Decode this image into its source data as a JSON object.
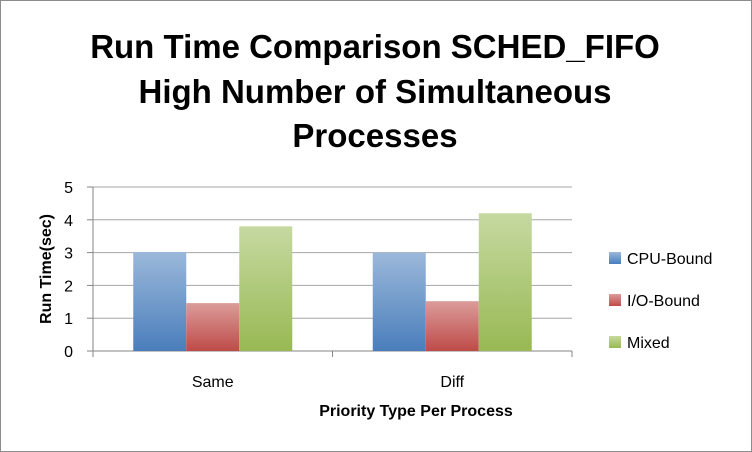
{
  "chart_data": {
    "type": "bar",
    "title_lines": [
      "Run Time Comparison SCHED_FIFO",
      "High Number of Simultaneous",
      "Processes"
    ],
    "xlabel": "Priority Type Per Process",
    "ylabel": "Run Time(sec)",
    "categories": [
      "Same",
      "Diff"
    ],
    "ylim": [
      0,
      5
    ],
    "yticks": [
      0,
      1,
      2,
      3,
      4,
      5
    ],
    "grid": true,
    "legend_position": "right",
    "series": [
      {
        "name": "CPU-Bound",
        "values": [
          3.02,
          3.0
        ],
        "color": "#4a7ebb"
      },
      {
        "name": "I/O-Bound",
        "values": [
          1.46,
          1.52
        ],
        "color": "#be4b48"
      },
      {
        "name": "Mixed",
        "values": [
          3.8,
          4.2
        ],
        "color": "#98b954"
      }
    ]
  }
}
